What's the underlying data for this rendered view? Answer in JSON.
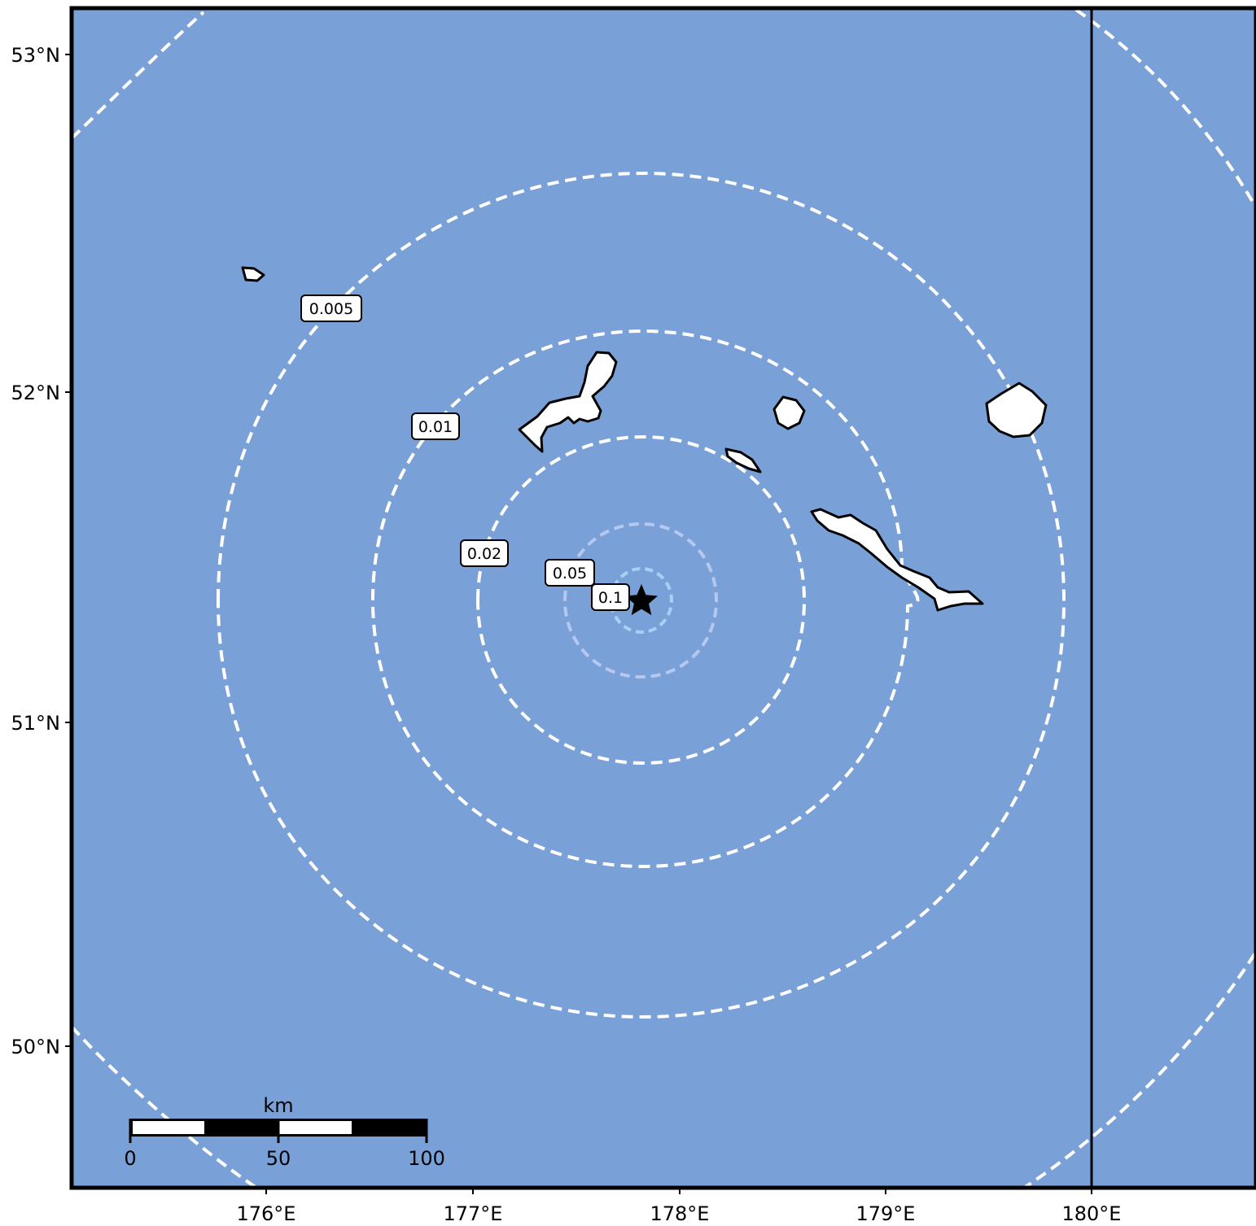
{
  "map": {
    "colors": {
      "ocean": "#7aa0d8",
      "land": "#ffffff",
      "coastline": "#000000",
      "contour_outer": "#ffffff",
      "contour_inner": "#b4c8f0",
      "contour_innermost": "#a8d0f4",
      "frame": "#000000"
    },
    "lat_ticks": [
      "53°N",
      "52°N",
      "51°N",
      "50°N"
    ],
    "lon_ticks": [
      "176°E",
      "177°E",
      "178°E",
      "179°E",
      "180°E"
    ],
    "epicenter": {
      "lon": 177.82,
      "lat": 51.38,
      "marker": "star-icon"
    },
    "contours": [
      {
        "value": 0.1,
        "label": "0.1"
      },
      {
        "value": 0.05,
        "label": "0.05"
      },
      {
        "value": 0.02,
        "label": "0.02"
      },
      {
        "value": 0.01,
        "label": "0.01"
      },
      {
        "value": 0.005,
        "label": "0.005"
      }
    ],
    "antimeridian": "180°E",
    "scale_bar": {
      "unit": "km",
      "labels": [
        "0",
        "50",
        "100"
      ]
    }
  }
}
